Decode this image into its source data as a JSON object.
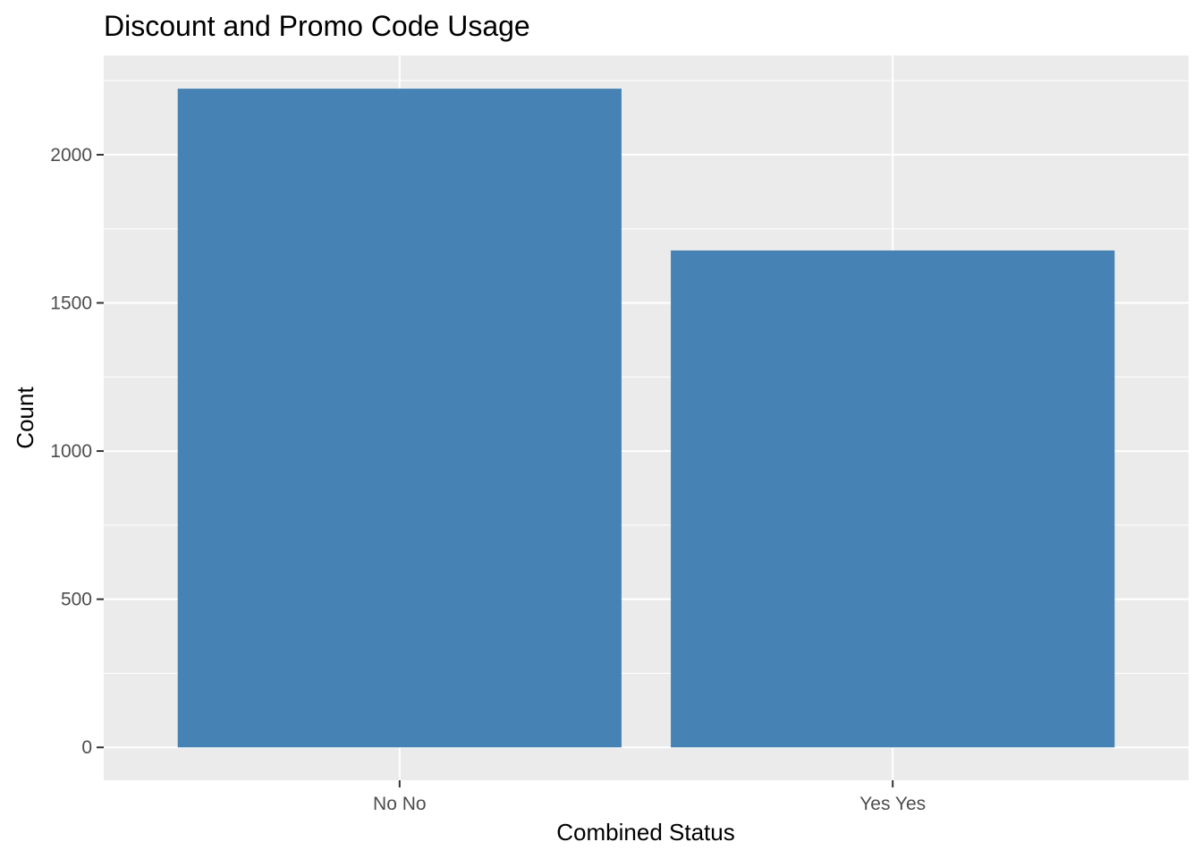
{
  "chart_data": {
    "type": "bar",
    "title": "Discount and Promo Code Usage",
    "xlabel": "Combined Status",
    "ylabel": "Count",
    "categories": [
      "No No",
      "Yes Yes"
    ],
    "values": [
      2223,
      1677
    ],
    "ylim": [
      -111,
      2335
    ],
    "yticks": [
      0,
      500,
      1000,
      1500,
      2000
    ],
    "ytick_labels": [
      "0",
      "500",
      "1000",
      "1500",
      "2000"
    ],
    "grid": true,
    "legend": "none",
    "colors": {
      "bar": "#4682B4",
      "panel": "#EBEBEB",
      "grid": "#FFFFFF",
      "tick_text": "#4D4D4D",
      "tick_mark": "#333333"
    }
  }
}
